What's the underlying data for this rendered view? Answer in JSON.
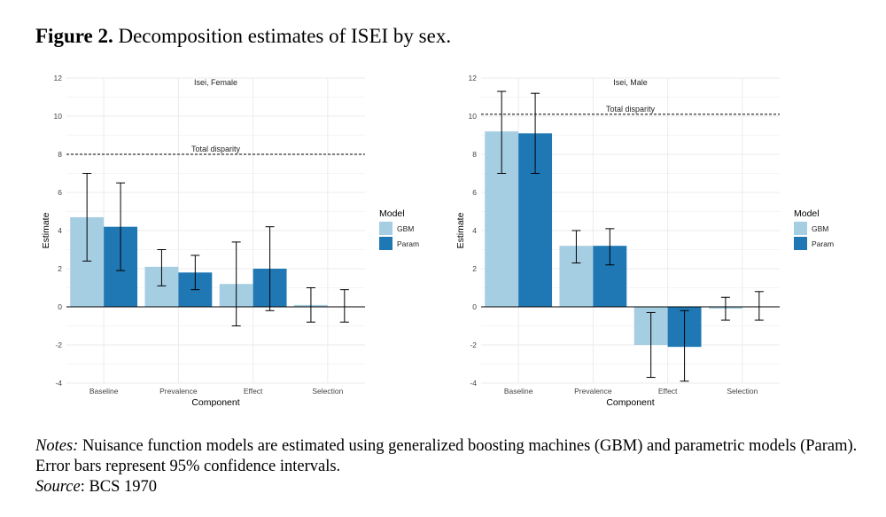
{
  "figure": {
    "label": "Figure 2.",
    "title": "Decomposition estimates of ISEI by sex."
  },
  "colors": {
    "gbm": "#a6cee3",
    "param": "#1f78b4",
    "grid": "#ebebeb",
    "axis": "#000000"
  },
  "chart_data": [
    {
      "type": "bar",
      "title": "Isei, Female",
      "xlabel": "Component",
      "ylabel": "Estimate",
      "categories": [
        "Baseline",
        "Prevalence",
        "Effect",
        "Selection"
      ],
      "ylim": [
        -4,
        12
      ],
      "yticks": [
        "-4",
        "-2",
        "0",
        "2",
        "4",
        "6",
        "8",
        "10",
        "12"
      ],
      "reference_line": {
        "label": "Total disparity",
        "value": 8.0
      },
      "legend": {
        "title": "Model",
        "position": "right"
      },
      "series": [
        {
          "name": "GBM",
          "values": [
            4.7,
            2.1,
            1.2,
            0.1
          ],
          "ci_low": [
            2.4,
            1.1,
            -1.0,
            -0.8
          ],
          "ci_high": [
            7.0,
            3.0,
            3.4,
            1.0
          ]
        },
        {
          "name": "Param",
          "values": [
            4.2,
            1.8,
            2.0,
            0.0
          ],
          "ci_low": [
            1.9,
            0.9,
            -0.2,
            -0.8
          ],
          "ci_high": [
            6.5,
            2.7,
            4.2,
            0.9
          ]
        }
      ]
    },
    {
      "type": "bar",
      "title": "Isei, Male",
      "xlabel": "Component",
      "ylabel": "Estimate",
      "categories": [
        "Baseline",
        "Prevalence",
        "Effect",
        "Selection"
      ],
      "ylim": [
        -4,
        12
      ],
      "yticks": [
        "-4",
        "-2",
        "0",
        "2",
        "4",
        "6",
        "8",
        "10",
        "12"
      ],
      "reference_line": {
        "label": "Total disparity",
        "value": 10.1
      },
      "legend": {
        "title": "Model",
        "position": "right"
      },
      "series": [
        {
          "name": "GBM",
          "values": [
            9.2,
            3.2,
            -2.0,
            -0.1
          ],
          "ci_low": [
            7.0,
            2.3,
            -3.7,
            -0.7
          ],
          "ci_high": [
            11.3,
            4.0,
            -0.3,
            0.5
          ]
        },
        {
          "name": "Param",
          "values": [
            9.1,
            3.2,
            -2.1,
            0.0
          ],
          "ci_low": [
            7.0,
            2.2,
            -3.9,
            -0.7
          ],
          "ci_high": [
            11.2,
            4.1,
            -0.2,
            0.8
          ]
        }
      ]
    }
  ],
  "notes": {
    "notes_label": "Notes:",
    "notes_text": " Nuisance function models are estimated using generalized boosting machines (GBM) and parametric models (Param). Error bars represent 95% confidence intervals.",
    "source_label": "Source",
    "source_text": ": BCS 1970"
  }
}
